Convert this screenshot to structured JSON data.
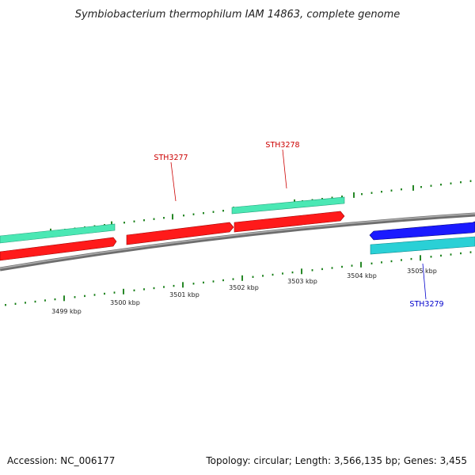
{
  "title": "Symbiobacterium thermophilum IAM 14863, complete genome",
  "footer": {
    "accession": "Accession: NC_006177",
    "summary": "Topology: circular; Length: 3,566,135 bp; Genes: 3,455"
  },
  "colors": {
    "backbone": "#8a8a8a",
    "forward_cds": "#4be8b4",
    "forward_cds_red": "#ff1a1a",
    "reverse_cds": "#1a1aff",
    "reverse_cds_cyan": "#2ad0d6",
    "tick": "#0f7a0f",
    "label_red": "#cc0000",
    "label_blue": "#0000cc"
  },
  "axis": {
    "unit": "kbp",
    "ticks": [
      {
        "label": "3499 kbp"
      },
      {
        "label": "3500 kbp"
      },
      {
        "label": "3501 kbp"
      },
      {
        "label": "3502 kbp"
      },
      {
        "label": "3503 kbp"
      },
      {
        "label": "3504 kbp"
      },
      {
        "label": "3505 kbp"
      }
    ]
  },
  "genes": [
    {
      "name": "STH3277",
      "strand": "forward",
      "label_color": "label_red"
    },
    {
      "name": "STH3278",
      "strand": "forward",
      "label_color": "label_red"
    },
    {
      "name": "STH3279",
      "strand": "reverse",
      "label_color": "label_blue"
    }
  ]
}
